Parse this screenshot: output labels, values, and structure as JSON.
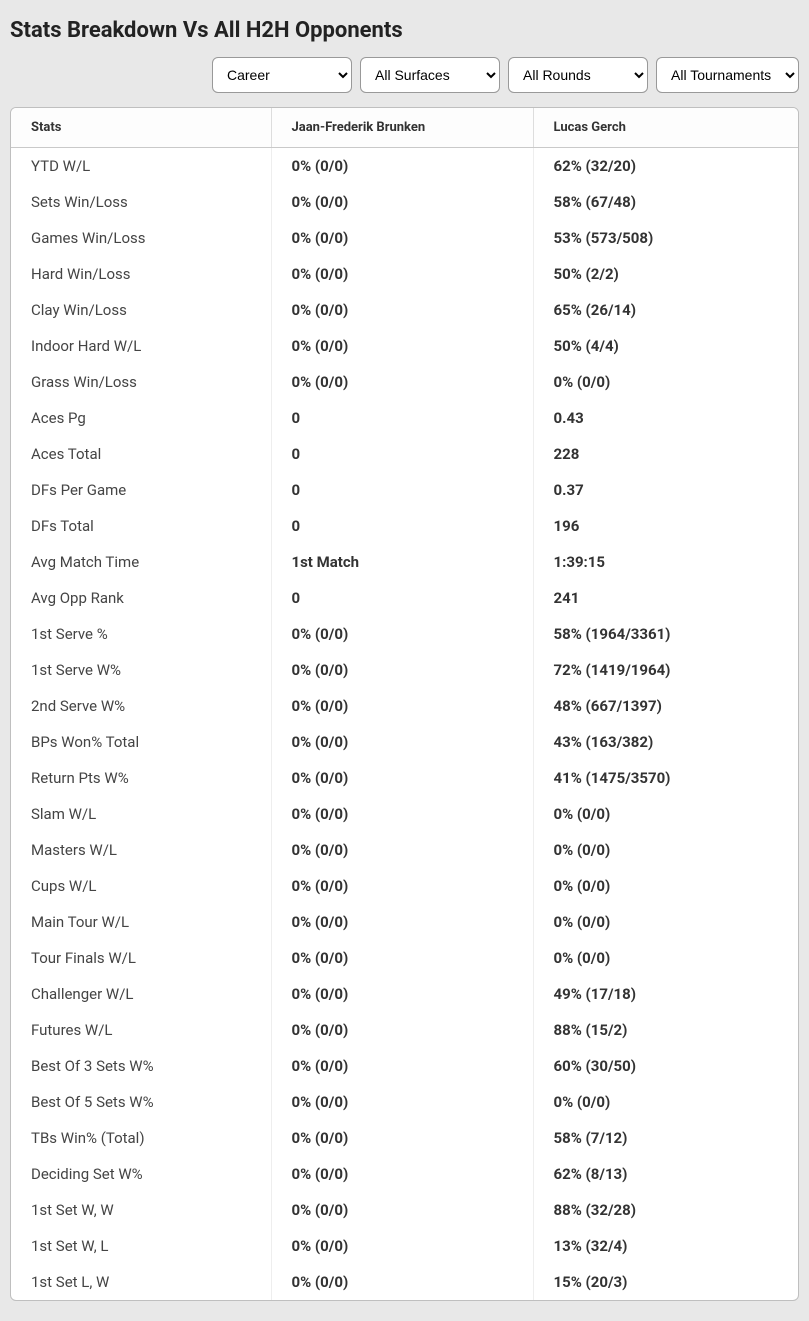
{
  "title": "Stats Breakdown Vs All H2H Opponents",
  "filters": {
    "period": "Career",
    "surface": "All Surfaces",
    "round": "All Rounds",
    "tournament": "All Tournaments"
  },
  "columns": {
    "stats": "Stats",
    "player1": "Jaan-Frederik Brunken",
    "player2": "Lucas Gerch"
  },
  "rows": [
    {
      "label": "YTD W/L",
      "p1": "0% (0/0)",
      "p2": "62% (32/20)"
    },
    {
      "label": "Sets Win/Loss",
      "p1": "0% (0/0)",
      "p2": "58% (67/48)"
    },
    {
      "label": "Games Win/Loss",
      "p1": "0% (0/0)",
      "p2": "53% (573/508)"
    },
    {
      "label": "Hard Win/Loss",
      "p1": "0% (0/0)",
      "p2": "50% (2/2)"
    },
    {
      "label": "Clay Win/Loss",
      "p1": "0% (0/0)",
      "p2": "65% (26/14)"
    },
    {
      "label": "Indoor Hard W/L",
      "p1": "0% (0/0)",
      "p2": "50% (4/4)"
    },
    {
      "label": "Grass Win/Loss",
      "p1": "0% (0/0)",
      "p2": "0% (0/0)"
    },
    {
      "label": "Aces Pg",
      "p1": "0",
      "p2": "0.43"
    },
    {
      "label": "Aces Total",
      "p1": "0",
      "p2": "228"
    },
    {
      "label": "DFs Per Game",
      "p1": "0",
      "p2": "0.37"
    },
    {
      "label": "DFs Total",
      "p1": "0",
      "p2": "196"
    },
    {
      "label": "Avg Match Time",
      "p1": "1st Match",
      "p2": "1:39:15"
    },
    {
      "label": "Avg Opp Rank",
      "p1": "0",
      "p2": "241"
    },
    {
      "label": "1st Serve %",
      "p1": "0% (0/0)",
      "p2": "58% (1964/3361)"
    },
    {
      "label": "1st Serve W%",
      "p1": "0% (0/0)",
      "p2": "72% (1419/1964)"
    },
    {
      "label": "2nd Serve W%",
      "p1": "0% (0/0)",
      "p2": "48% (667/1397)"
    },
    {
      "label": "BPs Won% Total",
      "p1": "0% (0/0)",
      "p2": "43% (163/382)"
    },
    {
      "label": "Return Pts W%",
      "p1": "0% (0/0)",
      "p2": "41% (1475/3570)"
    },
    {
      "label": "Slam W/L",
      "p1": "0% (0/0)",
      "p2": "0% (0/0)"
    },
    {
      "label": "Masters W/L",
      "p1": "0% (0/0)",
      "p2": "0% (0/0)"
    },
    {
      "label": "Cups W/L",
      "p1": "0% (0/0)",
      "p2": "0% (0/0)"
    },
    {
      "label": "Main Tour W/L",
      "p1": "0% (0/0)",
      "p2": "0% (0/0)"
    },
    {
      "label": "Tour Finals W/L",
      "p1": "0% (0/0)",
      "p2": "0% (0/0)"
    },
    {
      "label": "Challenger W/L",
      "p1": "0% (0/0)",
      "p2": "49% (17/18)"
    },
    {
      "label": "Futures W/L",
      "p1": "0% (0/0)",
      "p2": "88% (15/2)"
    },
    {
      "label": "Best Of 3 Sets W%",
      "p1": "0% (0/0)",
      "p2": "60% (30/50)"
    },
    {
      "label": "Best Of 5 Sets W%",
      "p1": "0% (0/0)",
      "p2": "0% (0/0)"
    },
    {
      "label": "TBs Win% (Total)",
      "p1": "0% (0/0)",
      "p2": "58% (7/12)"
    },
    {
      "label": "Deciding Set W%",
      "p1": "0% (0/0)",
      "p2": "62% (8/13)"
    },
    {
      "label": "1st Set W, W",
      "p1": "0% (0/0)",
      "p2": "88% (32/28)"
    },
    {
      "label": "1st Set W, L",
      "p1": "0% (0/0)",
      "p2": "13% (32/4)"
    },
    {
      "label": "1st Set L, W",
      "p1": "0% (0/0)",
      "p2": "15% (20/3)"
    }
  ]
}
